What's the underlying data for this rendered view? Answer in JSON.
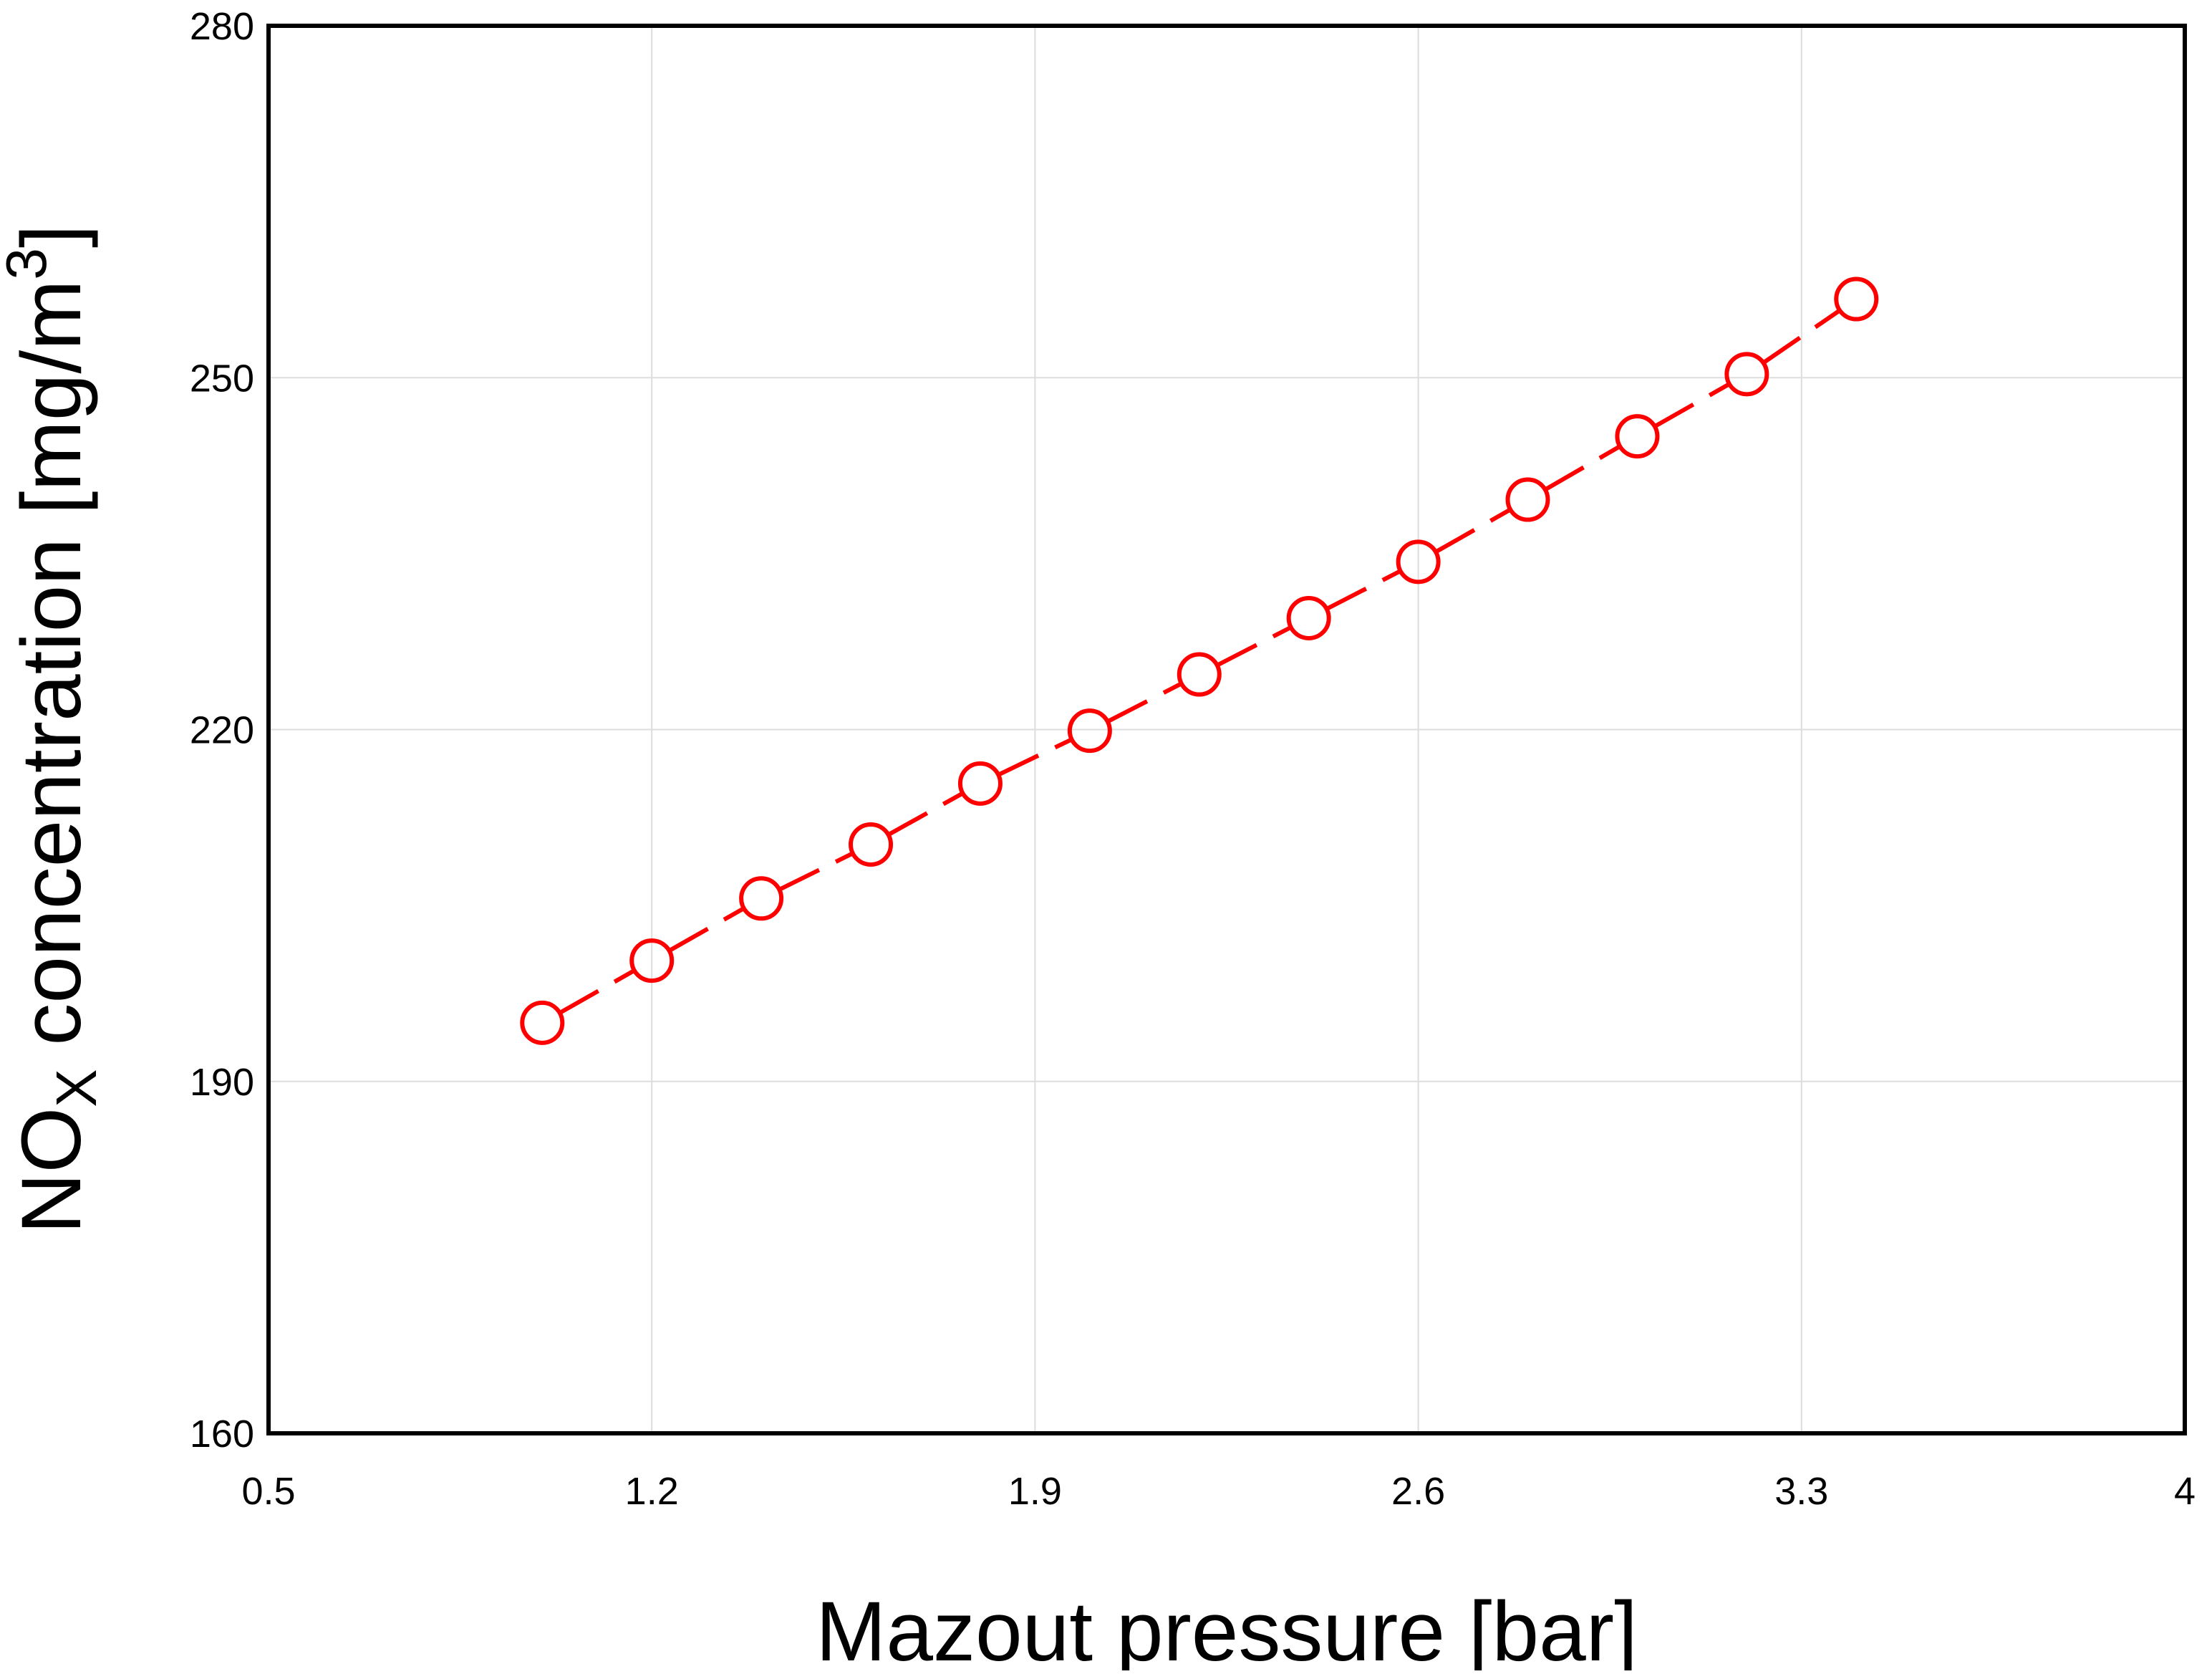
{
  "chart_data": {
    "type": "line",
    "title": "",
    "xlabel": "Mazout pressure [bar]",
    "ylabel": {
      "main": "NO",
      "sub": "X",
      "rest": " concentration [mg/m",
      "sup": "3",
      "close": "]"
    },
    "xlim": [
      0.5,
      4
    ],
    "ylim": [
      160,
      280
    ],
    "xticks": [
      "0.5",
      "1.2",
      "1.9",
      "2.6",
      "3.3",
      "4"
    ],
    "yticks": [
      "160",
      "190",
      "220",
      "250",
      "280"
    ],
    "grid": true,
    "legend": "none",
    "series": [
      {
        "color": "#ff0000",
        "line_style": "dashed",
        "marker": "open-circle",
        "x": [
          1.0,
          1.2,
          1.4,
          1.6,
          1.8,
          2.0,
          2.2,
          2.4,
          2.6,
          2.8,
          3.0,
          3.2,
          3.4
        ],
        "y": [
          195.0,
          200.3,
          205.6,
          210.2,
          215.4,
          219.9,
          224.7,
          229.5,
          234.3,
          239.6,
          245.0,
          250.3,
          256.7
        ]
      }
    ]
  }
}
